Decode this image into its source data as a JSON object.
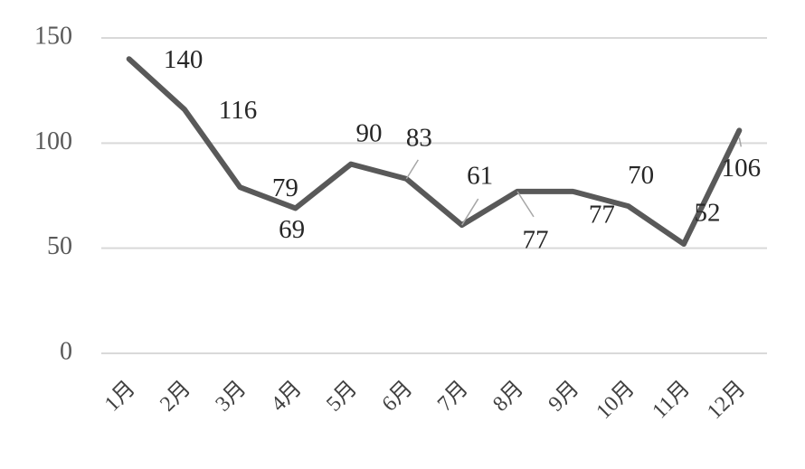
{
  "chart_data": {
    "type": "line",
    "categories": [
      "1月",
      "2月",
      "3月",
      "4月",
      "5月",
      "6月",
      "7月",
      "8月",
      "9月",
      "10月",
      "11月",
      "12月"
    ],
    "values": [
      140,
      116,
      79,
      69,
      90,
      83,
      61,
      77,
      77,
      70,
      52,
      106
    ],
    "color": "#595959",
    "ylim": [
      0,
      150
    ],
    "yticks": [
      0,
      50,
      100,
      150
    ],
    "grid": true
  }
}
